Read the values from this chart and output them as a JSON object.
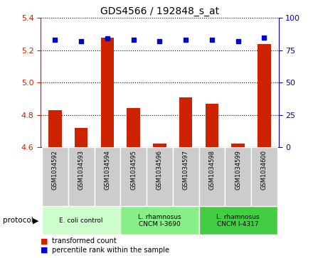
{
  "title": "GDS4566 / 192848_s_at",
  "samples": [
    "GSM1034592",
    "GSM1034593",
    "GSM1034594",
    "GSM1034595",
    "GSM1034596",
    "GSM1034597",
    "GSM1034598",
    "GSM1034599",
    "GSM1034600"
  ],
  "transformed_counts": [
    4.83,
    4.72,
    5.28,
    4.84,
    4.62,
    4.91,
    4.87,
    4.62,
    5.24
  ],
  "percentile_ranks": [
    83,
    82,
    84,
    83,
    82,
    83,
    83,
    82,
    85
  ],
  "ylim_left": [
    4.6,
    5.4
  ],
  "ylim_right": [
    0,
    100
  ],
  "yticks_left": [
    4.6,
    4.8,
    5.0,
    5.2,
    5.4
  ],
  "yticks_right": [
    0,
    25,
    50,
    75,
    100
  ],
  "protocols": [
    {
      "label": "E. coli control",
      "samples": [
        0,
        1,
        2
      ],
      "color": "#ccffcc"
    },
    {
      "label": "L. rhamnosus\nCNCM I-3690",
      "samples": [
        3,
        4,
        5
      ],
      "color": "#88ee88"
    },
    {
      "label": "L. rhamnosus\nCNCM I-4317",
      "samples": [
        6,
        7,
        8
      ],
      "color": "#44cc44"
    }
  ],
  "bar_color": "#cc2200",
  "marker_color": "#0000cc",
  "bar_width": 0.5,
  "left_axis_color": "#cc2200",
  "right_axis_color": "#0000cc",
  "sample_box_color": "#cccccc",
  "legend_items": [
    {
      "label": "transformed count",
      "color": "#cc2200"
    },
    {
      "label": "percentile rank within the sample",
      "color": "#0000cc"
    }
  ]
}
